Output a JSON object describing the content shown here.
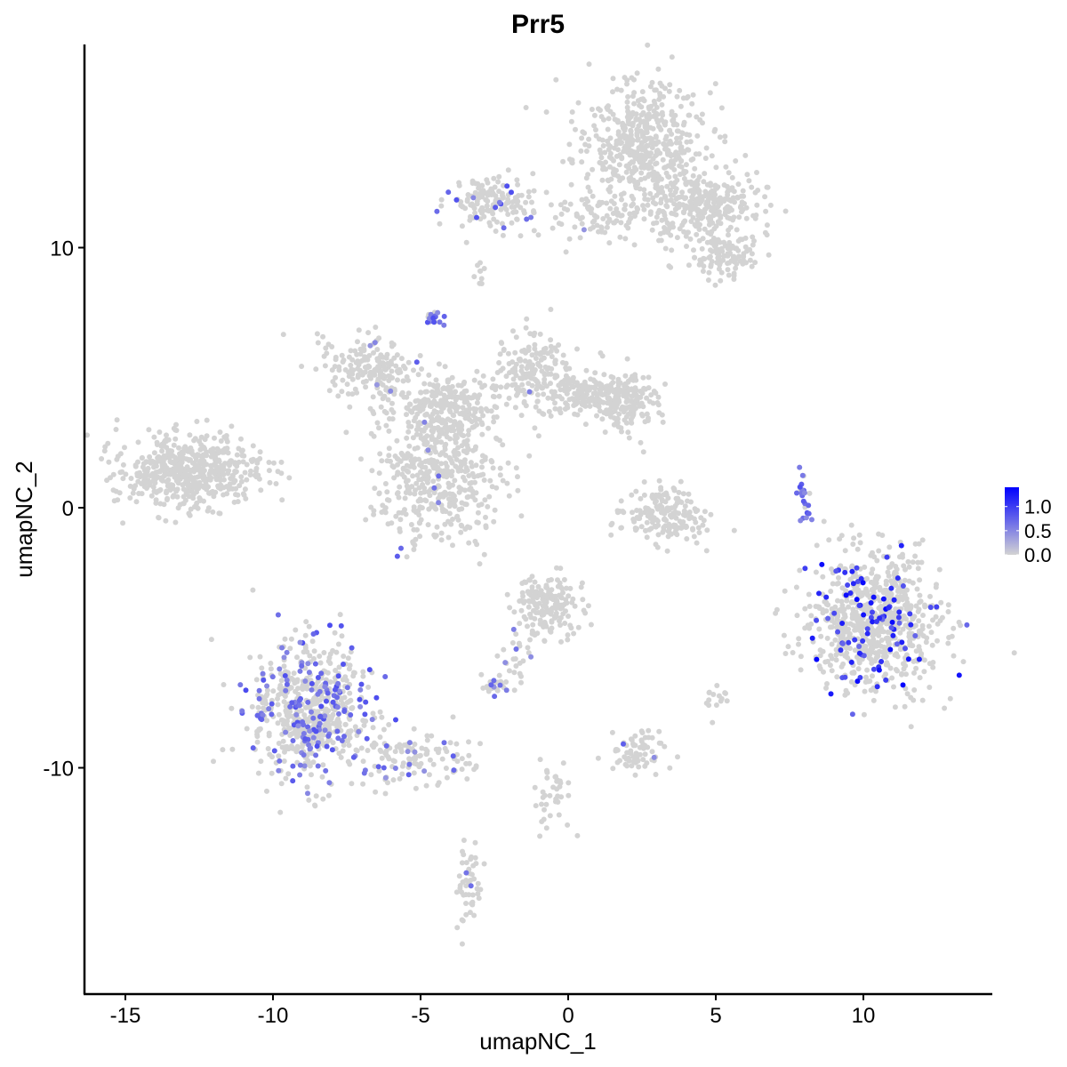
{
  "chart_data": {
    "type": "scatter",
    "title": "Prr5",
    "xlabel": "umapNC_1",
    "ylabel": "umapNC_2",
    "xlim": [
      -16.4,
      14.3
    ],
    "ylim": [
      -18.7,
      17.8
    ],
    "xticks": [
      -15,
      -10,
      -5,
      0,
      5,
      10
    ],
    "yticks": [
      -10,
      0,
      10
    ],
    "xtick_labels": [
      "-15",
      "-10",
      "-5",
      "0",
      "5",
      "10"
    ],
    "ytick_labels": [
      "-10",
      "0",
      "10"
    ],
    "grid": false,
    "legend": {
      "position": "right",
      "colorbar": true,
      "range": [
        0,
        1.4
      ],
      "ticks": [
        1.0,
        0.5,
        0.0
      ],
      "tick_labels": [
        "1.0",
        "0.5",
        "0.0"
      ],
      "low_color": "#D3D3D3",
      "high_color": "#0000FF"
    },
    "clusters": [
      {
        "cx": 2.4,
        "cy": 14.0,
        "sx": 1.1,
        "sy": 1.2,
        "n": 500,
        "expr_frac": 0.0,
        "expr_max": 0.0
      },
      {
        "cx": 4.6,
        "cy": 11.6,
        "sx": 1.0,
        "sy": 0.7,
        "n": 300,
        "expr_frac": 0.0,
        "expr_max": 0.0
      },
      {
        "cx": 5.3,
        "cy": 9.6,
        "sx": 0.6,
        "sy": 0.4,
        "n": 100,
        "expr_frac": 0.0,
        "expr_max": 0.0
      },
      {
        "cx": 1.2,
        "cy": 11.3,
        "sx": 1.0,
        "sy": 0.5,
        "n": 90,
        "expr_frac": 0.03,
        "expr_max": 0.8
      },
      {
        "cx": -2.5,
        "cy": 11.7,
        "sx": 0.8,
        "sy": 0.5,
        "n": 150,
        "expr_frac": 0.08,
        "expr_max": 0.9
      },
      {
        "cx": -4.2,
        "cy": 3.8,
        "sx": 1.0,
        "sy": 0.6,
        "n": 250,
        "expr_frac": 0.01,
        "expr_max": 0.8
      },
      {
        "cx": -6.6,
        "cy": 5.4,
        "sx": 0.9,
        "sy": 0.6,
        "n": 180,
        "expr_frac": 0.03,
        "expr_max": 0.8
      },
      {
        "cx": -1.2,
        "cy": 5.3,
        "sx": 0.6,
        "sy": 0.8,
        "n": 150,
        "expr_frac": 0.01,
        "expr_max": 0.8
      },
      {
        "cx": 0.8,
        "cy": 4.4,
        "sx": 1.0,
        "sy": 0.4,
        "n": 200,
        "expr_frac": 0.0,
        "expr_max": 0.0
      },
      {
        "cx": 2.0,
        "cy": 4.0,
        "sx": 0.5,
        "sy": 0.6,
        "n": 120,
        "expr_frac": 0.0,
        "expr_max": 0.0
      },
      {
        "cx": -4.3,
        "cy": 1.2,
        "sx": 1.0,
        "sy": 1.3,
        "n": 450,
        "expr_frac": 0.01,
        "expr_max": 0.8
      },
      {
        "cx": -12.8,
        "cy": 1.4,
        "sx": 1.2,
        "sy": 0.7,
        "n": 550,
        "expr_frac": 0.0,
        "expr_max": 0.0
      },
      {
        "cx": 3.2,
        "cy": -0.2,
        "sx": 0.8,
        "sy": 0.5,
        "n": 180,
        "expr_frac": 0.0,
        "expr_max": 0.0
      },
      {
        "cx": -8.7,
        "cy": -7.8,
        "sx": 1.0,
        "sy": 1.3,
        "n": 650,
        "expr_frac": 0.2,
        "expr_max": 0.9
      },
      {
        "cx": -5.3,
        "cy": -9.7,
        "sx": 1.0,
        "sy": 0.5,
        "n": 120,
        "expr_frac": 0.12,
        "expr_max": 0.8
      },
      {
        "cx": 10.4,
        "cy": -4.4,
        "sx": 1.1,
        "sy": 1.3,
        "n": 800,
        "expr_frac": 0.12,
        "expr_max": 1.4
      },
      {
        "cx": -0.6,
        "cy": -3.8,
        "sx": 0.6,
        "sy": 0.6,
        "n": 170,
        "expr_frac": 0.0,
        "expr_max": 0.0
      },
      {
        "cx": 2.3,
        "cy": -9.3,
        "sx": 0.5,
        "sy": 0.5,
        "n": 70,
        "expr_frac": 0.03,
        "expr_max": 0.8
      },
      {
        "cx": -3.4,
        "cy": -14.6,
        "sx": 0.3,
        "sy": 0.8,
        "n": 50,
        "expr_frac": 0.02,
        "expr_max": 0.8
      },
      {
        "cx": 8.0,
        "cy": 0.5,
        "sx": 0.12,
        "sy": 0.6,
        "n": 25,
        "expr_frac": 0.8,
        "expr_max": 0.9
      },
      {
        "cx": -4.5,
        "cy": 7.3,
        "sx": 0.15,
        "sy": 0.15,
        "n": 20,
        "expr_frac": 0.9,
        "expr_max": 0.9
      },
      {
        "cx": -2.5,
        "cy": -6.9,
        "sx": 0.3,
        "sy": 0.25,
        "n": 25,
        "expr_frac": 0.15,
        "expr_max": 0.8
      },
      {
        "cx": 5.0,
        "cy": -7.3,
        "sx": 0.2,
        "sy": 0.2,
        "n": 15,
        "expr_frac": 0.0,
        "expr_max": 0.0
      },
      {
        "cx": -0.4,
        "cy": -11.0,
        "sx": 0.3,
        "sy": 0.8,
        "n": 40,
        "expr_frac": 0.0,
        "expr_max": 0.0
      },
      {
        "cx": -1.8,
        "cy": -5.8,
        "sx": 0.3,
        "sy": 0.6,
        "n": 25,
        "expr_frac": 0.05,
        "expr_max": 0.8
      },
      {
        "cx": -3.0,
        "cy": 9.0,
        "sx": 0.1,
        "sy": 0.3,
        "n": 10,
        "expr_frac": 0.0,
        "expr_max": 0.0
      }
    ]
  }
}
